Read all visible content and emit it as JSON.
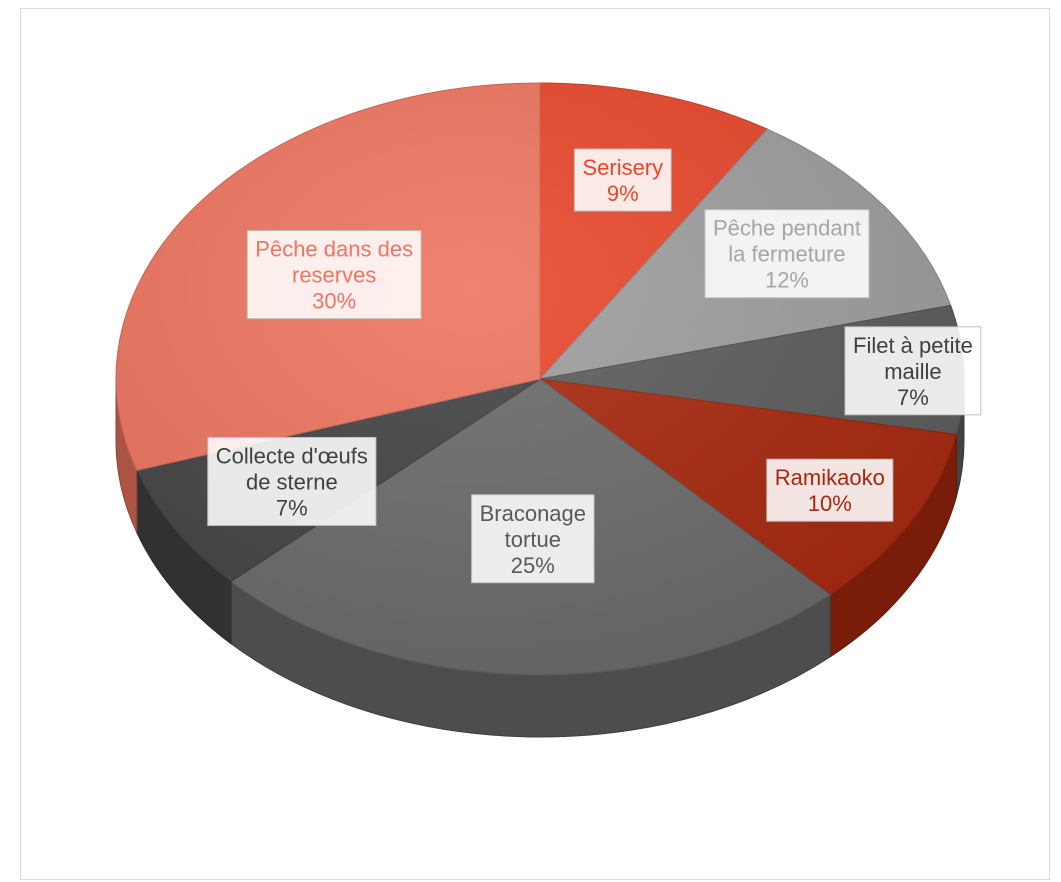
{
  "chart_data": {
    "type": "pie",
    "style": "3d-tilted",
    "slices": [
      {
        "label": "Serisery",
        "value": 9,
        "value_label": "9%",
        "color": "#E8472B"
      },
      {
        "label": "Pêche pendant la fermeture",
        "value": 12,
        "value_label": "12%",
        "color": "#9E9E9E"
      },
      {
        "label": "Filet à petite maille",
        "value": 7,
        "value_label": "7%",
        "color": "#5C5C5C"
      },
      {
        "label": "Ramikaoko",
        "value": 10,
        "value_label": "10%",
        "color": "#A8280E"
      },
      {
        "label": "Braconage tortue",
        "value": 25,
        "value_label": "25%",
        "color": "#6B6B6B"
      },
      {
        "label": "Collecte d'œufs de sterne",
        "value": 7,
        "value_label": "7%",
        "color": "#444444"
      },
      {
        "label": "Pêche dans des reserves",
        "value": 30,
        "value_label": "30%",
        "color": "#EE7560"
      }
    ],
    "label_lines": [
      [
        "Serisery",
        "9%"
      ],
      [
        "Pêche pendant",
        "la fermeture",
        "12%"
      ],
      [
        "Filet à petite",
        "maille",
        "7%"
      ],
      [
        "Ramikaoko",
        "10%"
      ],
      [
        "Braconage",
        "tortue",
        "25%"
      ],
      [
        "Collecte d'œufs",
        "de sterne",
        "7%"
      ],
      [
        "Pêche dans des",
        "reserves",
        "30%"
      ]
    ],
    "label_text_colors": [
      "#E8472B",
      "#A6A6A6",
      "#404040",
      "#A8280E",
      "#595959",
      "#404040",
      "#EE7560"
    ],
    "start_angle_deg": 0,
    "direction": "clockwise",
    "legend": "none"
  }
}
